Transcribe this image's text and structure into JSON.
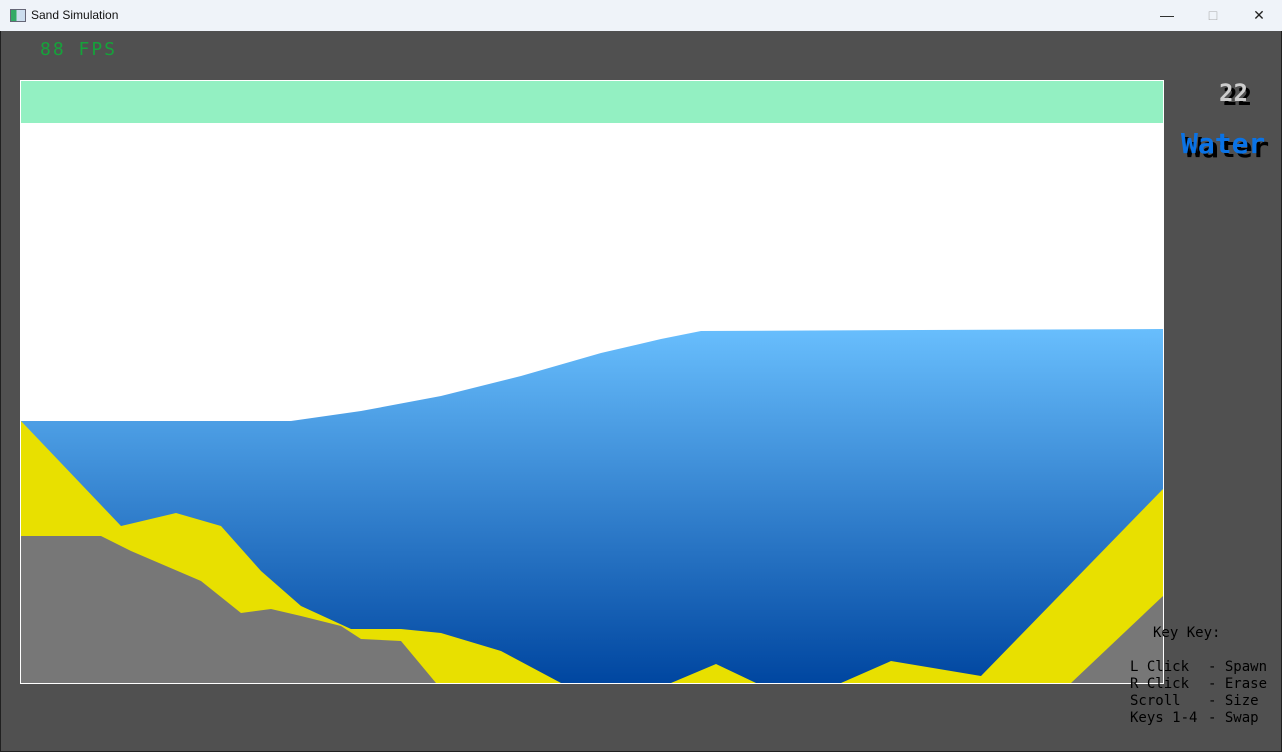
{
  "window": {
    "title": "Sand Simulation",
    "minimize_icon": "minimize-icon",
    "maximize_icon": "maximize-icon",
    "close_icon": "close-icon"
  },
  "hud": {
    "fps": "88 FPS",
    "brush_size": "22",
    "material": "Water",
    "material_color": "#0a73e6"
  },
  "legend": {
    "title": "Key Key:",
    "rows": [
      {
        "key": "L Click",
        "action": "Spawn"
      },
      {
        "key": "R Click",
        "action": "Erase"
      },
      {
        "key": "Scroll",
        "action": "Size"
      },
      {
        "key": "Keys 1-4",
        "action": "Swap"
      }
    ]
  },
  "colors": {
    "gas": "#93f0c2",
    "air": "#ffffff",
    "water_top": "#68befd",
    "water_bottom": "#0046a0",
    "sand": "#e8e000",
    "stone": "#777777",
    "background": "#505050"
  }
}
